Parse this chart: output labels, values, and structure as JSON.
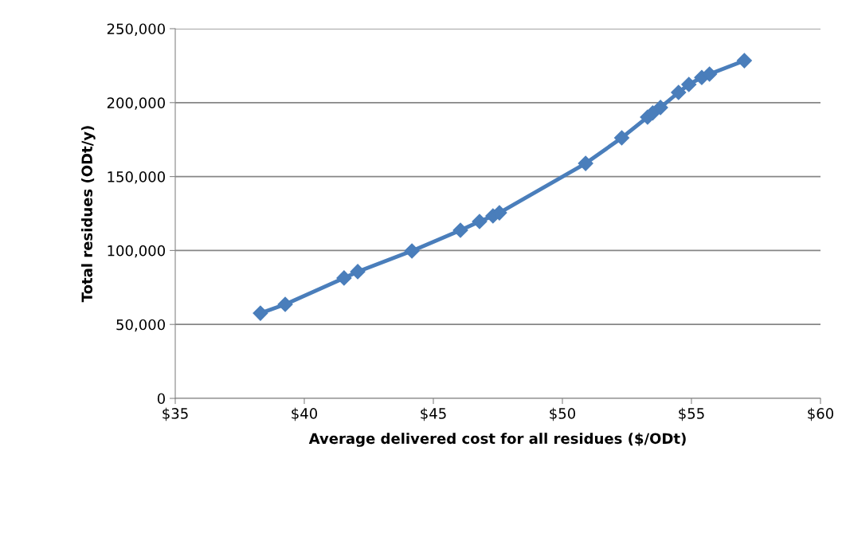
{
  "chart_data": {
    "type": "line",
    "xlabel": "Average delivered cost for all residues ($/ODt)",
    "ylabel": "Total residues (ODt/y)",
    "series": [
      {
        "color": "#4a7ebb",
        "x": [
          38.3,
          39.26,
          41.54,
          42.07,
          44.17,
          46.05,
          46.79,
          47.31,
          47.56,
          50.9,
          52.3,
          53.3,
          53.5,
          53.8,
          54.5,
          54.9,
          55.4,
          55.7,
          57.05
        ],
        "values": [
          57600,
          63600,
          81400,
          85700,
          99700,
          113700,
          119600,
          123400,
          125500,
          158900,
          176200,
          190200,
          193000,
          196700,
          206900,
          212300,
          217000,
          219300,
          228400
        ]
      }
    ],
    "marker": "diamond",
    "line_style": "solid",
    "grid": "y",
    "legend": false,
    "xlim": [
      35,
      60
    ],
    "xticks": [
      {
        "value": 35,
        "label": "$35"
      },
      {
        "value": 40,
        "label": "$40"
      },
      {
        "value": 45,
        "label": "$45"
      },
      {
        "value": 50,
        "label": "$50"
      },
      {
        "value": 55,
        "label": "$55"
      },
      {
        "value": 60,
        "label": "$60"
      }
    ],
    "ylim": [
      0,
      250000
    ],
    "yticks": [
      {
        "value": 0,
        "label": "0"
      },
      {
        "value": 50000,
        "label": "50,000"
      },
      {
        "value": 100000,
        "label": "100,000"
      },
      {
        "value": 150000,
        "label": "150,000"
      },
      {
        "value": 200000,
        "label": "200,000"
      },
      {
        "value": 250000,
        "label": "250,000"
      }
    ]
  }
}
